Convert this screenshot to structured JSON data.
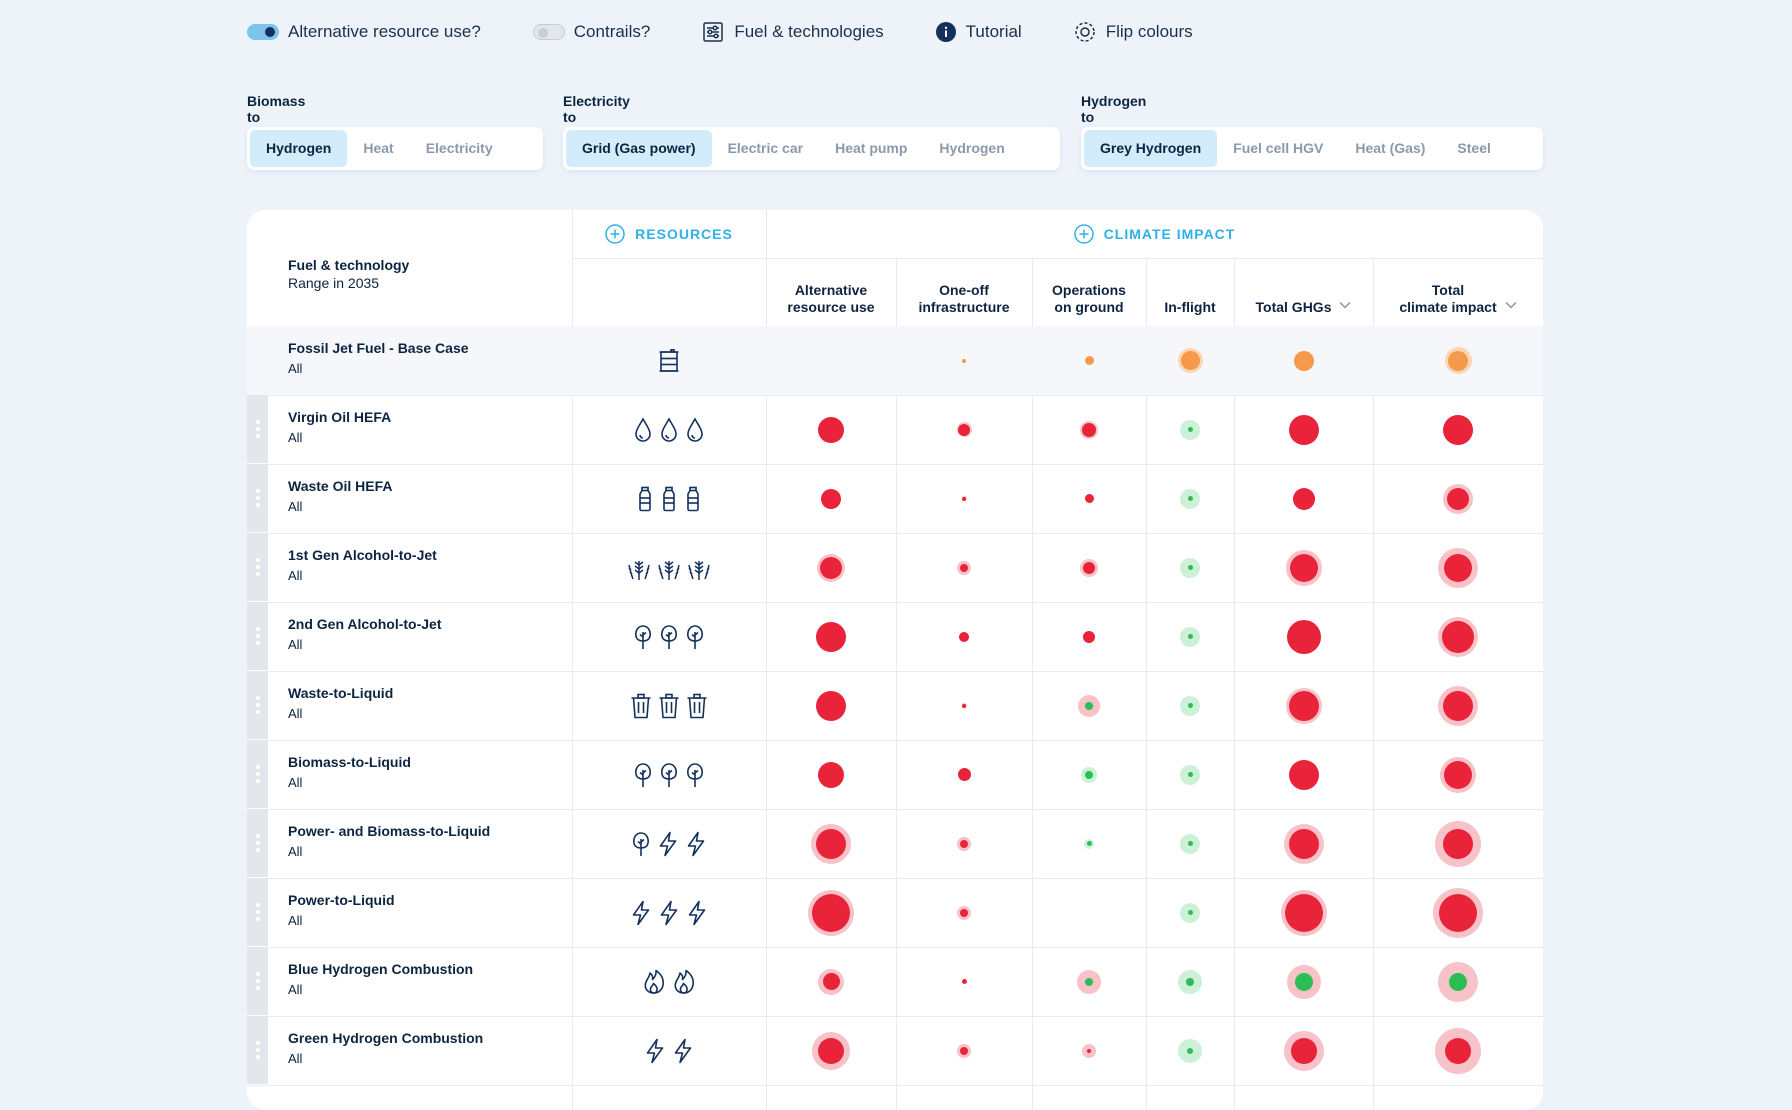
{
  "topbar": {
    "alt_resource": {
      "label": "Alternative resource use?",
      "on": true
    },
    "contrails": {
      "label": "Contrails?",
      "on": false
    },
    "fuel_tech": {
      "label": "Fuel & technologies",
      "icon": "sliders-icon"
    },
    "tutorial": {
      "label": "Tutorial",
      "icon": "info-icon"
    },
    "flip": {
      "label": "Flip colours",
      "icon": "flip-colours-icon"
    }
  },
  "groups": [
    {
      "label": "Biomass to",
      "options": [
        "Hydrogen",
        "Heat",
        "Electricity"
      ],
      "active": 0
    },
    {
      "label": "Electricity to",
      "options": [
        "Grid (Gas power)",
        "Electric car",
        "Heat pump",
        "Hydrogen"
      ],
      "active": 0
    },
    {
      "label": "Hydrogen to",
      "options": [
        "Grey Hydrogen",
        "Fuel cell HGV",
        "Heat (Gas)",
        "Steel"
      ],
      "active": 0
    }
  ],
  "table": {
    "fuel_header": {
      "title": "Fuel & technology",
      "subtitle": "Range in 2035"
    },
    "resources_header": "RESOURCES",
    "climate_header": "CLIMATE IMPACT",
    "columns": [
      {
        "key": "alt",
        "label_1": "Alternative",
        "label_2": "resource use",
        "sortable": false
      },
      {
        "key": "infra",
        "label_1": "One-off",
        "label_2": "infrastructure",
        "sortable": false
      },
      {
        "key": "ops",
        "label_1": "Operations",
        "label_2": "on ground",
        "sortable": false
      },
      {
        "key": "flight",
        "label_1": "",
        "label_2": "In-flight",
        "sortable": false
      },
      {
        "key": "ghg",
        "label_1": "",
        "label_2": "Total GHGs",
        "sortable": true
      },
      {
        "key": "climate",
        "label_1": "Total",
        "label_2": "climate impact",
        "sortable": true
      }
    ],
    "colors": {
      "red": "#e8233a",
      "red_halo": "#f7c2c8",
      "orange": "#f5994a",
      "orange_halo": "#fbd6b4",
      "green": "#2dbd55",
      "green_halo": "#cdf1d6"
    },
    "rows": [
      {
        "name": "Fossil Jet Fuel - Base Case",
        "sub": "All",
        "base": true,
        "icons": [
          "barrel-icon"
        ],
        "cells": {
          "alt": null,
          "infra": {
            "c": "orange",
            "r": 4,
            "h": 0
          },
          "ops": {
            "c": "orange",
            "r": 9,
            "h": 0
          },
          "flight": {
            "c": "orange",
            "r": 19,
            "h": 25
          },
          "ghg": {
            "c": "orange",
            "r": 20,
            "h": 0
          },
          "climate": {
            "c": "orange",
            "r": 20,
            "h": 27
          }
        }
      },
      {
        "name": "Virgin Oil HEFA",
        "sub": "All",
        "icons": [
          "drop-icon",
          "drop-icon",
          "drop-icon"
        ],
        "cells": {
          "alt": {
            "c": "red",
            "r": 26,
            "h": 0
          },
          "infra": {
            "c": "red",
            "r": 12,
            "h": 15
          },
          "ops": {
            "c": "red",
            "r": 14,
            "h": 18
          },
          "flight": {
            "c": "green",
            "r": 5,
            "h": 20
          },
          "ghg": {
            "c": "red",
            "r": 30,
            "h": 0
          },
          "climate": {
            "c": "red",
            "r": 30,
            "h": 0
          }
        }
      },
      {
        "name": "Waste Oil HEFA",
        "sub": "All",
        "icons": [
          "bottle-icon",
          "bottle-icon",
          "bottle-icon"
        ],
        "cells": {
          "alt": {
            "c": "red",
            "r": 20,
            "h": 0
          },
          "infra": {
            "c": "red",
            "r": 4,
            "h": 5
          },
          "ops": {
            "c": "red",
            "r": 9,
            "h": 0
          },
          "flight": {
            "c": "green",
            "r": 5,
            "h": 20
          },
          "ghg": {
            "c": "red",
            "r": 22,
            "h": 0
          },
          "climate": {
            "c": "red",
            "r": 22,
            "h": 30
          }
        }
      },
      {
        "name": "1st Gen Alcohol-to-Jet",
        "sub": "All",
        "icons": [
          "wheat-icon",
          "wheat-icon",
          "wheat-icon"
        ],
        "cells": {
          "alt": {
            "c": "red",
            "r": 22,
            "h": 28
          },
          "infra": {
            "c": "red",
            "r": 8,
            "h": 14
          },
          "ops": {
            "c": "red",
            "r": 12,
            "h": 18
          },
          "flight": {
            "c": "green",
            "r": 5,
            "h": 20
          },
          "ghg": {
            "c": "red",
            "r": 28,
            "h": 36
          },
          "climate": {
            "c": "red",
            "r": 28,
            "h": 40
          }
        }
      },
      {
        "name": "2nd Gen Alcohol-to-Jet",
        "sub": "All",
        "icons": [
          "tree-icon",
          "tree-icon",
          "tree-icon"
        ],
        "cells": {
          "alt": {
            "c": "red",
            "r": 30,
            "h": 0
          },
          "infra": {
            "c": "red",
            "r": 10,
            "h": 0
          },
          "ops": {
            "c": "red",
            "r": 12,
            "h": 0
          },
          "flight": {
            "c": "green",
            "r": 5,
            "h": 20
          },
          "ghg": {
            "c": "red",
            "r": 34,
            "h": 0
          },
          "climate": {
            "c": "red",
            "r": 32,
            "h": 40
          }
        }
      },
      {
        "name": "Waste-to-Liquid",
        "sub": "All",
        "icons": [
          "bin-icon",
          "bin-icon",
          "bin-icon"
        ],
        "cells": {
          "alt": {
            "c": "red",
            "r": 30,
            "h": 0
          },
          "infra": {
            "c": "red",
            "r": 4,
            "h": 5
          },
          "ops": {
            "c": "green",
            "r": 8,
            "h": 22,
            "halo": "red_halo"
          },
          "flight": {
            "c": "green",
            "r": 5,
            "h": 20
          },
          "ghg": {
            "c": "red",
            "r": 30,
            "h": 36
          },
          "climate": {
            "c": "red",
            "r": 30,
            "h": 40
          }
        }
      },
      {
        "name": "Biomass-to-Liquid",
        "sub": "All",
        "icons": [
          "tree-icon",
          "tree-icon",
          "tree-icon"
        ],
        "cells": {
          "alt": {
            "c": "red",
            "r": 26,
            "h": 0
          },
          "infra": {
            "c": "red",
            "r": 13,
            "h": 0
          },
          "ops": {
            "c": "green",
            "r": 8,
            "h": 16,
            "halo": "green_halo"
          },
          "flight": {
            "c": "green",
            "r": 5,
            "h": 20
          },
          "ghg": {
            "c": "red",
            "r": 30,
            "h": 0
          },
          "climate": {
            "c": "red",
            "r": 28,
            "h": 36
          }
        }
      },
      {
        "name": "Power- and Biomass-to-Liquid",
        "sub": "All",
        "icons": [
          "tree-icon",
          "bolt-icon",
          "bolt-icon"
        ],
        "cells": {
          "alt": {
            "c": "red",
            "r": 30,
            "h": 40
          },
          "infra": {
            "c": "red",
            "r": 8,
            "h": 14
          },
          "ops": {
            "c": "green",
            "r": 5,
            "h": 10,
            "halo": "green_halo"
          },
          "flight": {
            "c": "green",
            "r": 5,
            "h": 20
          },
          "ghg": {
            "c": "red",
            "r": 30,
            "h": 40
          },
          "climate": {
            "c": "red",
            "r": 30,
            "h": 46
          }
        }
      },
      {
        "name": "Power-to-Liquid",
        "sub": "All",
        "icons": [
          "bolt-icon",
          "bolt-icon",
          "bolt-icon"
        ],
        "cells": {
          "alt": {
            "c": "red",
            "r": 38,
            "h": 46
          },
          "infra": {
            "c": "red",
            "r": 8,
            "h": 14
          },
          "ops": null,
          "flight": {
            "c": "green",
            "r": 5,
            "h": 20
          },
          "ghg": {
            "c": "red",
            "r": 38,
            "h": 46
          },
          "climate": {
            "c": "red",
            "r": 38,
            "h": 50
          }
        }
      },
      {
        "name": "Blue Hydrogen Combustion",
        "sub": "All",
        "icons": [
          "flame-icon",
          "flame-icon"
        ],
        "cells": {
          "alt": {
            "c": "red",
            "r": 17,
            "h": 26
          },
          "infra": {
            "c": "red",
            "r": 5,
            "h": 0
          },
          "ops": {
            "c": "green",
            "r": 8,
            "h": 24,
            "halo": "red_halo"
          },
          "flight": {
            "c": "green",
            "r": 8,
            "h": 24
          },
          "ghg": {
            "c": "green",
            "r": 18,
            "h": 34,
            "halo": "red_halo"
          },
          "climate": {
            "c": "green",
            "r": 18,
            "h": 40,
            "halo": "red_halo"
          }
        }
      },
      {
        "name": "Green Hydrogen Combustion",
        "sub": "All",
        "icons": [
          "bolt-icon",
          "bolt-icon"
        ],
        "cells": {
          "alt": {
            "c": "red",
            "r": 26,
            "h": 38
          },
          "infra": {
            "c": "red",
            "r": 8,
            "h": 14
          },
          "ops": {
            "c": "red",
            "r": 4,
            "h": 14
          },
          "flight": {
            "c": "green",
            "r": 6,
            "h": 24
          },
          "ghg": {
            "c": "red",
            "r": 26,
            "h": 40
          },
          "climate": {
            "c": "red",
            "r": 26,
            "h": 46
          }
        }
      }
    ]
  }
}
